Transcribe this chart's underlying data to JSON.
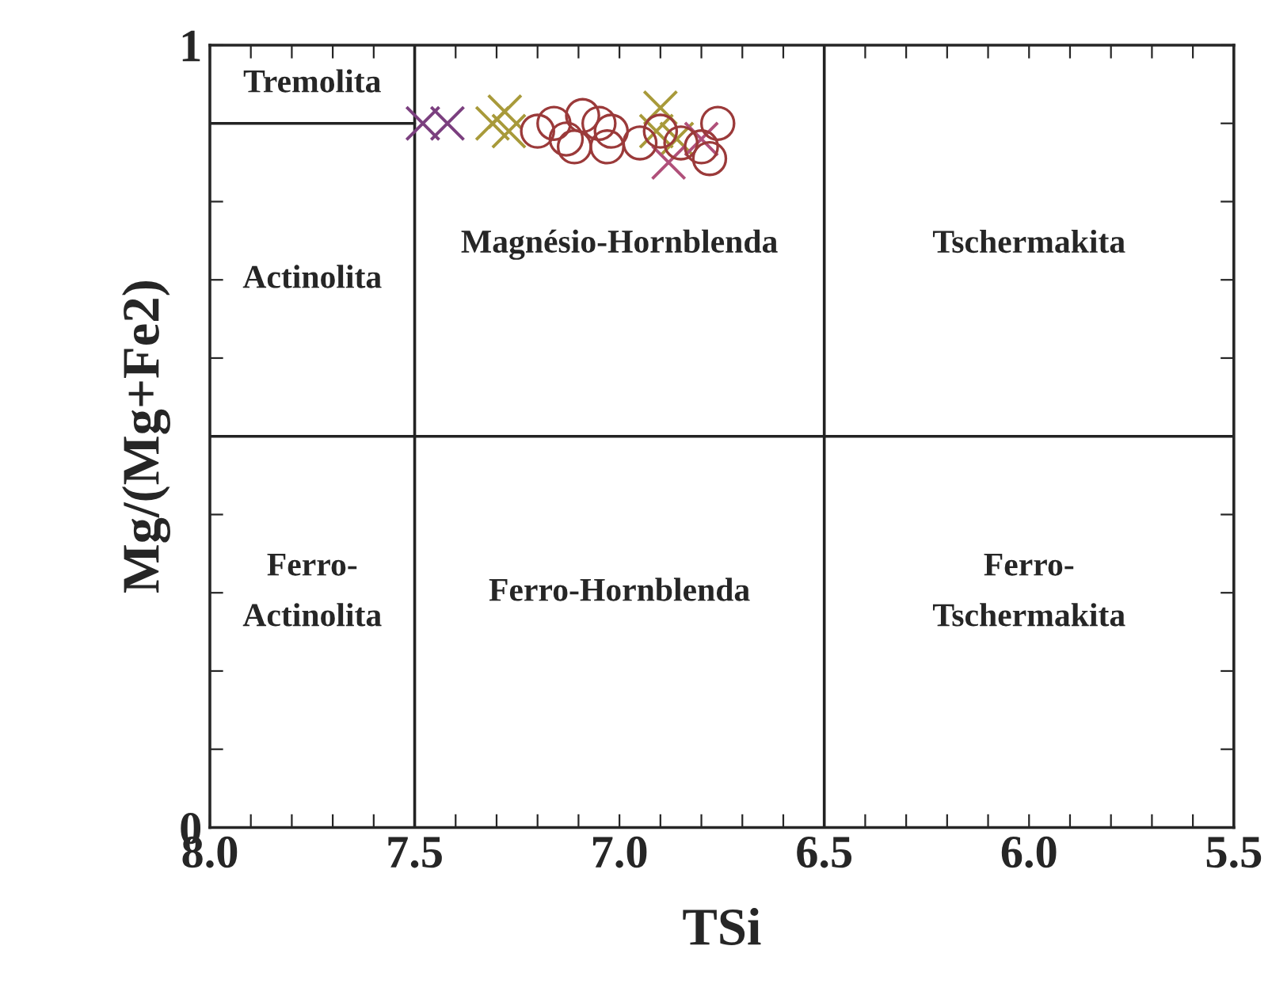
{
  "chart_data": {
    "type": "scatter",
    "xlabel": "TSi",
    "ylabel": "Mg/(Mg+Fe2)",
    "xlim": [
      8.0,
      5.5
    ],
    "ylim": [
      0,
      1
    ],
    "xticks": [
      {
        "value": 8.0,
        "label": "8.0"
      },
      {
        "value": 7.9,
        "label": null
      },
      {
        "value": 7.8,
        "label": null
      },
      {
        "value": 7.7,
        "label": null
      },
      {
        "value": 7.6,
        "label": null
      },
      {
        "value": 7.5,
        "label": "7.5"
      },
      {
        "value": 7.4,
        "label": null
      },
      {
        "value": 7.3,
        "label": null
      },
      {
        "value": 7.2,
        "label": null
      },
      {
        "value": 7.1,
        "label": null
      },
      {
        "value": 7.0,
        "label": "7.0"
      },
      {
        "value": 6.9,
        "label": null
      },
      {
        "value": 6.8,
        "label": null
      },
      {
        "value": 6.7,
        "label": null
      },
      {
        "value": 6.6,
        "label": null
      },
      {
        "value": 6.5,
        "label": "6.5"
      },
      {
        "value": 6.4,
        "label": null
      },
      {
        "value": 6.3,
        "label": null
      },
      {
        "value": 6.2,
        "label": null
      },
      {
        "value": 6.1,
        "label": null
      },
      {
        "value": 6.0,
        "label": "6.0"
      },
      {
        "value": 5.9,
        "label": null
      },
      {
        "value": 5.8,
        "label": null
      },
      {
        "value": 5.7,
        "label": null
      },
      {
        "value": 5.6,
        "label": null
      },
      5.5
    ],
    "yticks": [
      0,
      {
        "value": 0.1,
        "label": null
      },
      {
        "value": 0.2,
        "label": null
      },
      {
        "value": 0.3,
        "label": null
      },
      {
        "value": 0.4,
        "label": null
      },
      {
        "value": 0.5,
        "label": null
      },
      {
        "value": 0.6,
        "label": null
      },
      {
        "value": 0.7,
        "label": null
      },
      {
        "value": 0.8,
        "label": null
      },
      {
        "value": 0.9,
        "label": null
      },
      1
    ],
    "ref_lines": [
      {
        "axis": "x",
        "value": 7.5,
        "color": "#222222"
      },
      {
        "axis": "x",
        "value": 6.5,
        "color": "#222222"
      },
      {
        "axis": "y",
        "value": 0.5,
        "color": "#222222"
      }
    ],
    "series": [
      {
        "type": "line",
        "color": "#222222",
        "marker": "none",
        "x": [
          8.0,
          7.5
        ],
        "values": [
          0.9,
          0.9
        ]
      },
      {
        "marker": "cross",
        "color": "#7b3f7f",
        "x": [
          7.48,
          7.42
        ],
        "values": [
          0.9,
          0.9
        ]
      },
      {
        "marker": "cross",
        "color": "#a89a3a",
        "x": [
          7.31,
          7.28,
          7.27,
          6.9,
          6.91,
          6.86
        ],
        "values": [
          0.9,
          0.915,
          0.89,
          0.92,
          0.89,
          0.88
        ]
      },
      {
        "marker": "cross",
        "color": "#b0507a",
        "x": [
          6.88,
          6.8
        ],
        "values": [
          0.85,
          0.88
        ]
      },
      {
        "marker": "circle",
        "color": "#9b3a3a",
        "x": [
          7.2,
          7.16,
          7.13,
          7.09,
          7.11,
          7.05,
          7.02,
          7.03,
          6.95,
          6.9,
          6.85,
          6.8,
          6.76,
          6.78
        ],
        "values": [
          0.89,
          0.9,
          0.88,
          0.91,
          0.87,
          0.9,
          0.89,
          0.87,
          0.875,
          0.89,
          0.875,
          0.87,
          0.9,
          0.855
        ]
      }
    ],
    "annotations": [
      "Tremolita",
      "Actinolita",
      "Magnésio-Hornblenda",
      "Tschermakita",
      "Ferro-\nActinolita",
      "Ferro-Hornblenda",
      "Ferro-\nTschermakita"
    ]
  }
}
